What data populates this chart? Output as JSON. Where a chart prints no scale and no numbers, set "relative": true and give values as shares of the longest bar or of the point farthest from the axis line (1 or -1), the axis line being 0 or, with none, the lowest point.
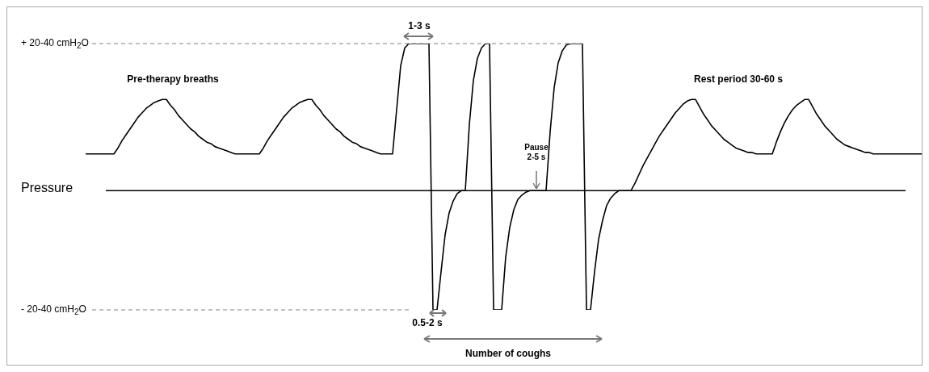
{
  "chart_data": {
    "type": "line",
    "relative": true,
    "ylabel": "Pressure",
    "marker": "none",
    "line_style": "solid",
    "legend": false,
    "categories": [
      null,
      null,
      null,
      null,
      null,
      null,
      null,
      null,
      null,
      null,
      null,
      null,
      null,
      null,
      null,
      null,
      null,
      null,
      null,
      null,
      null,
      null,
      null,
      null,
      null,
      null,
      null,
      null,
      null,
      null,
      null,
      null,
      null,
      null,
      null,
      null,
      null,
      null,
      null,
      null,
      null,
      null,
      null,
      null,
      null,
      null,
      null,
      null,
      null,
      null,
      null,
      null,
      null,
      null,
      null,
      null,
      null,
      null,
      null,
      null,
      null,
      null,
      null,
      null,
      null,
      null,
      null,
      null,
      null,
      null,
      null,
      null,
      null,
      null,
      null,
      null,
      null,
      null,
      null,
      null,
      null,
      null,
      null,
      null,
      null,
      null,
      null,
      null,
      null,
      null,
      null,
      null,
      null,
      null,
      null,
      null,
      null,
      null,
      null,
      null,
      null,
      null,
      null,
      null,
      null,
      null,
      null,
      null,
      null,
      null,
      null,
      null,
      null,
      null,
      null,
      null,
      null,
      null,
      null,
      null,
      null,
      null,
      null,
      null,
      null,
      null,
      null,
      null,
      null,
      null,
      null,
      null,
      null,
      null,
      null,
      null,
      null,
      null,
      null,
      null,
      null,
      null,
      null,
      null,
      null,
      null,
      null,
      null,
      null,
      null,
      null,
      null,
      null,
      null,
      null,
      null,
      null,
      null,
      null,
      null,
      null,
      null,
      null,
      null,
      null,
      null,
      null,
      null,
      null,
      null,
      null,
      null,
      null,
      null,
      null,
      null,
      null,
      null,
      null,
      null,
      null,
      null,
      null,
      null,
      null,
      null,
      null,
      null,
      null,
      null,
      null,
      null,
      null,
      null,
      null,
      null,
      null,
      null,
      null,
      null,
      null,
      null,
      null,
      null,
      null,
      null,
      null,
      null
    ],
    "series": [
      {
        "color": "#000000",
        "values": [
          0.25,
          0.25,
          0.25,
          0.25,
          0.25,
          0.25,
          0.25,
          0.25,
          0.29,
          0.34,
          0.38,
          0.42,
          0.46,
          0.5,
          0.53,
          0.56,
          0.58,
          0.6,
          0.61,
          0.62,
          0.62,
          0.58,
          0.55,
          0.51,
          0.48,
          0.45,
          0.42,
          0.4,
          0.37,
          0.35,
          0.33,
          0.32,
          0.3,
          0.29,
          0.28,
          0.27,
          0.26,
          0.25,
          0.25,
          0.25,
          0.25,
          0.25,
          0.25,
          0.25,
          0.29,
          0.34,
          0.38,
          0.42,
          0.46,
          0.5,
          0.53,
          0.56,
          0.58,
          0.6,
          0.61,
          0.62,
          0.62,
          0.58,
          0.55,
          0.51,
          0.48,
          0.45,
          0.42,
          0.4,
          0.37,
          0.35,
          0.33,
          0.32,
          0.3,
          0.29,
          0.28,
          0.27,
          0.26,
          0.25,
          0.25,
          0.25,
          0.25,
          0.55,
          0.85,
          0.97,
          1,
          1,
          1,
          1,
          1,
          1,
          -0.81,
          -0.81,
          -0.55,
          -0.3,
          -0.15,
          -0.07,
          -0.02,
          0,
          0,
          0.45,
          0.75,
          0.9,
          0.97,
          1,
          1,
          -0.81,
          -0.81,
          -0.81,
          -0.45,
          -0.25,
          -0.13,
          -0.06,
          -0.03,
          -0.01,
          0,
          0,
          0,
          0,
          0,
          0.4,
          0.7,
          0.87,
          0.95,
          0.99,
          1,
          1,
          1,
          1,
          -0.81,
          -0.81,
          -0.55,
          -0.33,
          -0.2,
          -0.1,
          -0.05,
          -0.02,
          0,
          0,
          0,
          0,
          0.05,
          0.11,
          0.17,
          0.22,
          0.27,
          0.32,
          0.37,
          0.41,
          0.45,
          0.49,
          0.53,
          0.56,
          0.59,
          0.61,
          0.62,
          0.62,
          0.57,
          0.52,
          0.48,
          0.44,
          0.41,
          0.38,
          0.35,
          0.33,
          0.31,
          0.29,
          0.28,
          0.27,
          0.26,
          0.26,
          0.25,
          0.25,
          0.25,
          0.25,
          0.25,
          0.33,
          0.4,
          0.46,
          0.51,
          0.55,
          0.58,
          0.6,
          0.62,
          0.62,
          0.57,
          0.52,
          0.48,
          0.44,
          0.41,
          0.38,
          0.35,
          0.33,
          0.31,
          0.3,
          0.29,
          0.28,
          0.27,
          0.26,
          0.26,
          0.25,
          0.25,
          0.25,
          0.25,
          0.25,
          0.25,
          0.25,
          0.25,
          0.25,
          0.25,
          0.25,
          0.25,
          0.25
        ]
      }
    ],
    "ref_lines": [
      {
        "axis": "y",
        "value": 1,
        "label": "+ 20-40 cmH$_{2}$O",
        "line_style": "dashed",
        "color": "#808080"
      },
      {
        "axis": "y",
        "value": -0.81,
        "label": "- 20-40 cmH$_{2}$O",
        "line_style": "dashed",
        "color": "#808080"
      }
    ],
    "annotations": [
      "Pre-therapy breaths",
      "1-3 s",
      "0.5-2 s",
      "Pause 2-5 s",
      "Rest period 30-60 s",
      "Number of coughs"
    ]
  }
}
